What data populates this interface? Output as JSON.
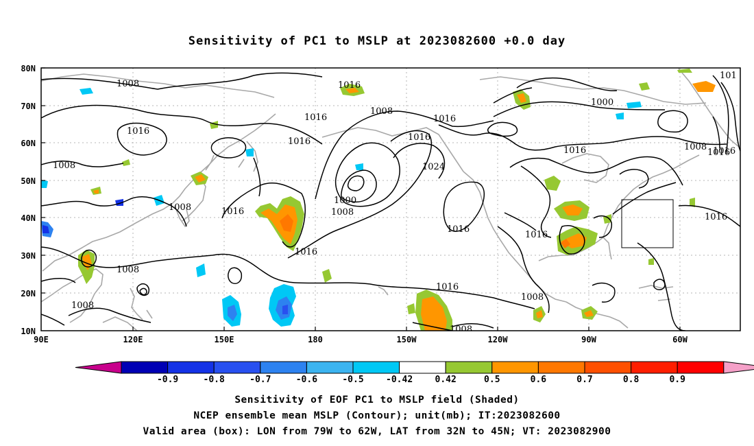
{
  "title": "Sensitivity of PC1 to MSLP at 2023082600 +0.0 day",
  "map": {
    "lat_labels": [
      "80N",
      "70N",
      "60N",
      "50N",
      "40N",
      "30N",
      "20N",
      "10N"
    ],
    "lon_labels": [
      "90E",
      "120E",
      "150E",
      "180",
      "150W",
      "120W",
      "90W",
      "60W"
    ],
    "contour_labels": [
      "1008",
      "1016",
      "1008",
      "1016",
      "1008",
      "1016",
      "1016",
      "1000",
      "1008",
      "1016",
      "1024",
      "1016",
      "1016",
      "1008",
      "1016",
      "1016",
      "1008",
      "1008",
      "1016",
      "1008",
      "1016",
      "1016",
      "1016",
      "1000",
      "1008",
      "1016",
      "1016",
      "101",
      "1008"
    ],
    "valid_box": {
      "lon_from": "79W",
      "lon_to": "62W",
      "lat_from": "32N",
      "lat_to": "45N"
    }
  },
  "colorbar": {
    "labels": [
      "-0.9",
      "-0.8",
      "-0.7",
      "-0.6",
      "-0.5",
      "-0.42",
      "0.42",
      "0.5",
      "0.6",
      "0.7",
      "0.8",
      "0.9"
    ],
    "colors": [
      "#c8008c",
      "#0000b4",
      "#1432e6",
      "#2850f0",
      "#2d82f0",
      "#3cb4f0",
      "#00c8f5",
      "#ffffff",
      "#96c832",
      "#ff9600",
      "#ff7800",
      "#ff5000",
      "#ff1e00",
      "#ff0000",
      "#f5a0c8"
    ]
  },
  "captions": {
    "line1": "Sensitivity of EOF PC1 to MSLP field (Shaded)",
    "line2": "NCEP ensemble mean MSLP (Contour); unit(mb); IT:2023082600",
    "line3": "Valid area (box): LON from 79W to 62W, LAT from 32N to 45N; VT: 2023082900"
  }
}
